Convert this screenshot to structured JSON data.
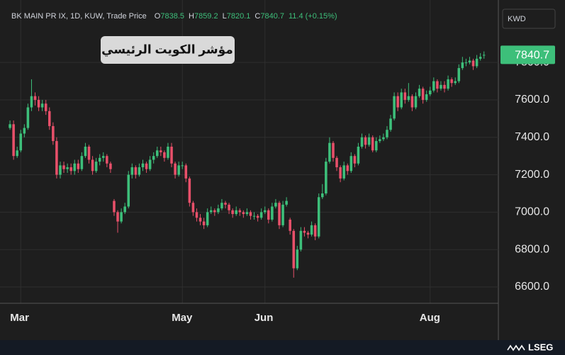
{
  "chart_data": {
    "type": "candlestick",
    "header": {
      "symbol": "BK MAIN PR IX, 1D, KUW, Trade Price",
      "ohlc_labels": [
        "O",
        "H",
        "L",
        "C"
      ],
      "change": "11.4 (+0.15%)"
    },
    "annotation": "مؤشر الكويت الرئيسي",
    "currency": "KWD",
    "brand": "LSEG",
    "up_color": "#3dbf7a",
    "down_color": "#e8506a",
    "grid": true,
    "xlim": [
      -1,
      136
    ],
    "xticks": [
      {
        "value": 3,
        "label": "Mar"
      },
      {
        "value": 48,
        "label": "May"
      },
      {
        "value": 71,
        "label": "Jun"
      },
      {
        "value": 117,
        "label": "Aug"
      }
    ],
    "ylim": [
      6513,
      8096
    ],
    "yticks": [
      {
        "value": 6600,
        "label": "6600.0"
      },
      {
        "value": 6800,
        "label": "6800.0"
      },
      {
        "value": 7000,
        "label": "7000.0"
      },
      {
        "value": 7200,
        "label": "7200.0"
      },
      {
        "value": 7400,
        "label": "7400.0"
      },
      {
        "value": 7600,
        "label": "7600.0"
      },
      {
        "value": 7800,
        "label": "7800.0"
      }
    ],
    "candles": [
      [
        7450,
        7490,
        7440,
        7470
      ],
      [
        7470,
        7490,
        7280,
        7300
      ],
      [
        7300,
        7350,
        7290,
        7330
      ],
      [
        7330,
        7440,
        7320,
        7420
      ],
      [
        7420,
        7470,
        7400,
        7450
      ],
      [
        7450,
        7580,
        7440,
        7560
      ],
      [
        7560,
        7710,
        7540,
        7620
      ],
      [
        7620,
        7640,
        7570,
        7600
      ],
      [
        7600,
        7620,
        7540,
        7560
      ],
      [
        7560,
        7600,
        7540,
        7580
      ],
      [
        7580,
        7600,
        7520,
        7540
      ],
      [
        7540,
        7560,
        7440,
        7460
      ],
      [
        7460,
        7480,
        7360,
        7380
      ],
      [
        7380,
        7400,
        7180,
        7200
      ],
      [
        7200,
        7270,
        7180,
        7250
      ],
      [
        7250,
        7270,
        7210,
        7230
      ],
      [
        7230,
        7260,
        7210,
        7240
      ],
      [
        7240,
        7260,
        7200,
        7220
      ],
      [
        7220,
        7280,
        7200,
        7260
      ],
      [
        7260,
        7280,
        7210,
        7230
      ],
      [
        7230,
        7320,
        7220,
        7300
      ],
      [
        7300,
        7370,
        7290,
        7350
      ],
      [
        7350,
        7360,
        7260,
        7280
      ],
      [
        7280,
        7300,
        7200,
        7220
      ],
      [
        7220,
        7290,
        7210,
        7270
      ],
      [
        7270,
        7310,
        7250,
        7290
      ],
      [
        7290,
        7320,
        7270,
        7300
      ],
      [
        7300,
        7310,
        7240,
        7260
      ],
      [
        7260,
        7270,
        7210,
        7230
      ],
      [
        7060,
        7070,
        6980,
        7000
      ],
      [
        7000,
        7010,
        6890,
        6950
      ],
      [
        6950,
        7020,
        6940,
        7000
      ],
      [
        7000,
        7050,
        6990,
        7030
      ],
      [
        7030,
        7220,
        7020,
        7200
      ],
      [
        7200,
        7260,
        7180,
        7240
      ],
      [
        7240,
        7250,
        7180,
        7200
      ],
      [
        7200,
        7260,
        7190,
        7240
      ],
      [
        7240,
        7280,
        7220,
        7260
      ],
      [
        7260,
        7270,
        7210,
        7230
      ],
      [
        7230,
        7300,
        7220,
        7280
      ],
      [
        7280,
        7320,
        7260,
        7300
      ],
      [
        7300,
        7350,
        7290,
        7330
      ],
      [
        7330,
        7350,
        7300,
        7320
      ],
      [
        7320,
        7330,
        7270,
        7290
      ],
      [
        7290,
        7370,
        7280,
        7350
      ],
      [
        7350,
        7370,
        7240,
        7260
      ],
      [
        7260,
        7270,
        7180,
        7200
      ],
      [
        7200,
        7270,
        7190,
        7250
      ],
      [
        7250,
        7270,
        7230,
        7250
      ],
      [
        7250,
        7260,
        7160,
        7180
      ],
      [
        7180,
        7190,
        7030,
        7050
      ],
      [
        7050,
        7060,
        6980,
        7000
      ],
      [
        7000,
        7020,
        6950,
        6970
      ],
      [
        6970,
        6990,
        6930,
        6950
      ],
      [
        6950,
        6970,
        6910,
        6930
      ],
      [
        6930,
        7020,
        6920,
        7000
      ],
      [
        7000,
        7030,
        6990,
        7010
      ],
      [
        7010,
        7020,
        6980,
        7000
      ],
      [
        7000,
        7040,
        6990,
        7020
      ],
      [
        7020,
        7070,
        7010,
        7050
      ],
      [
        7050,
        7060,
        7020,
        7040
      ],
      [
        7040,
        7050,
        6990,
        7010
      ],
      [
        7010,
        7020,
        6970,
        6990
      ],
      [
        6990,
        7030,
        6980,
        7010
      ],
      [
        7010,
        7020,
        6980,
        7000
      ],
      [
        7000,
        7010,
        6970,
        6990
      ],
      [
        6990,
        7020,
        6980,
        7000
      ],
      [
        7000,
        7010,
        6960,
        6980
      ],
      [
        6980,
        7000,
        6960,
        6980
      ],
      [
        6980,
        6990,
        6950,
        6970
      ],
      [
        6970,
        7020,
        6960,
        7000
      ],
      [
        7000,
        7030,
        6990,
        7010
      ],
      [
        7010,
        7020,
        6940,
        6960
      ],
      [
        6960,
        7050,
        6950,
        7030
      ],
      [
        7030,
        7070,
        7020,
        7050
      ],
      [
        7050,
        7060,
        6910,
        6930
      ],
      [
        6930,
        7060,
        6920,
        7040
      ],
      [
        7040,
        7080,
        7030,
        7060
      ],
      [
        6960,
        6970,
        6880,
        6900
      ],
      [
        6900,
        6910,
        6650,
        6700
      ],
      [
        6700,
        6820,
        6690,
        6800
      ],
      [
        6800,
        6920,
        6790,
        6900
      ],
      [
        6900,
        6920,
        6870,
        6890
      ],
      [
        6890,
        6900,
        6860,
        6880
      ],
      [
        6880,
        6950,
        6870,
        6930
      ],
      [
        6930,
        6940,
        6850,
        6870
      ],
      [
        6870,
        7100,
        6860,
        7080
      ],
      [
        7080,
        7150,
        7070,
        7100
      ],
      [
        7100,
        7290,
        7090,
        7270
      ],
      [
        7270,
        7400,
        7260,
        7370
      ],
      [
        7370,
        7380,
        7270,
        7290
      ],
      [
        7290,
        7300,
        7220,
        7240
      ],
      [
        7240,
        7250,
        7160,
        7180
      ],
      [
        7180,
        7270,
        7170,
        7250
      ],
      [
        7250,
        7260,
        7200,
        7220
      ],
      [
        7220,
        7320,
        7210,
        7300
      ],
      [
        7300,
        7310,
        7240,
        7260
      ],
      [
        7260,
        7370,
        7250,
        7350
      ],
      [
        7350,
        7420,
        7340,
        7400
      ],
      [
        7400,
        7410,
        7340,
        7360
      ],
      [
        7360,
        7420,
        7350,
        7400
      ],
      [
        7400,
        7410,
        7320,
        7330
      ],
      [
        7330,
        7400,
        7320,
        7380
      ],
      [
        7380,
        7410,
        7370,
        7390
      ],
      [
        7390,
        7420,
        7380,
        7400
      ],
      [
        7400,
        7460,
        7390,
        7440
      ],
      [
        7440,
        7520,
        7430,
        7500
      ],
      [
        7500,
        7640,
        7490,
        7620
      ],
      [
        7620,
        7640,
        7540,
        7560
      ],
      [
        7560,
        7660,
        7550,
        7640
      ],
      [
        7640,
        7660,
        7580,
        7600
      ],
      [
        7600,
        7690,
        7590,
        7620
      ],
      [
        7620,
        7630,
        7540,
        7560
      ],
      [
        7560,
        7640,
        7550,
        7620
      ],
      [
        7620,
        7680,
        7610,
        7660
      ],
      [
        7660,
        7670,
        7580,
        7600
      ],
      [
        7600,
        7650,
        7590,
        7630
      ],
      [
        7630,
        7670,
        7620,
        7650
      ],
      [
        7650,
        7720,
        7640,
        7700
      ],
      [
        7700,
        7710,
        7640,
        7660
      ],
      [
        7660,
        7700,
        7650,
        7680
      ],
      [
        7680,
        7700,
        7640,
        7660
      ],
      [
        7660,
        7730,
        7650,
        7710
      ],
      [
        7710,
        7720,
        7670,
        7690
      ],
      [
        7690,
        7720,
        7680,
        7700
      ],
      [
        7700,
        7790,
        7690,
        7770
      ],
      [
        7770,
        7830,
        7760,
        7800
      ],
      [
        7800,
        7820,
        7780,
        7800
      ],
      [
        7800,
        7830,
        7790,
        7810
      ],
      [
        7810,
        7820,
        7760,
        7780
      ],
      [
        7780,
        7840,
        7770,
        7820
      ],
      [
        7820,
        7850,
        7810,
        7830
      ],
      [
        7838.5,
        7859.2,
        7820.1,
        7840.7
      ]
    ]
  }
}
